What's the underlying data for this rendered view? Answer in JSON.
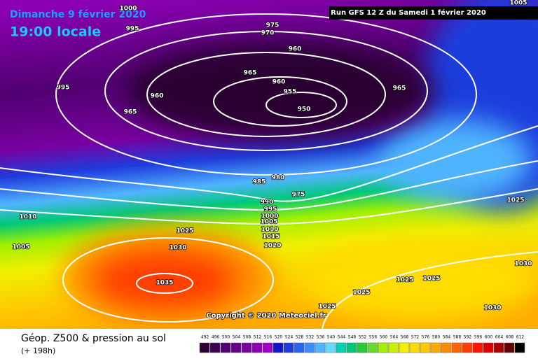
{
  "header": {
    "date": "Dimanche 9 février 2020",
    "time": "19:00 locale",
    "run": "Run GFS 12 Z du Samedi 1 février 2020"
  },
  "copyright": "Copyright © 2020 Meteociel.fr",
  "footer": {
    "title": "Géop. Z500 & pression au sol",
    "lead": "(+ 198h)"
  },
  "isobar_labels": [
    1000,
    995,
    975,
    970,
    960,
    965,
    960,
    955,
    950,
    960,
    965,
    995,
    965,
    985,
    980,
    975,
    990,
    995,
    1000,
    1005,
    1010,
    1015,
    1020,
    1010,
    1005,
    1025,
    1030,
    1035,
    1025,
    1030,
    1025,
    1025,
    1025,
    1025,
    1030,
    1005
  ],
  "scale": [
    {
      "label": 492,
      "color": "#2a0030"
    },
    {
      "label": 496,
      "color": "#3c0050"
    },
    {
      "label": 500,
      "color": "#500070"
    },
    {
      "label": 504,
      "color": "#640088"
    },
    {
      "label": 508,
      "color": "#7800a0"
    },
    {
      "label": 512,
      "color": "#8c00b4"
    },
    {
      "label": 516,
      "color": "#a000c8"
    },
    {
      "label": 520,
      "color": "#1414c8"
    },
    {
      "label": 524,
      "color": "#1e3cdc"
    },
    {
      "label": 528,
      "color": "#2864f0"
    },
    {
      "label": 532,
      "color": "#3c8cff"
    },
    {
      "label": 536,
      "color": "#50b4ff"
    },
    {
      "label": 540,
      "color": "#64dcff"
    },
    {
      "label": 544,
      "color": "#00d2b4"
    },
    {
      "label": 548,
      "color": "#00c878"
    },
    {
      "label": 552,
      "color": "#28c83c"
    },
    {
      "label": 556,
      "color": "#64dc28"
    },
    {
      "label": 560,
      "color": "#a0f000"
    },
    {
      "label": 564,
      "color": "#c8f000"
    },
    {
      "label": 568,
      "color": "#f0f000"
    },
    {
      "label": 572,
      "color": "#ffdc00"
    },
    {
      "label": 576,
      "color": "#ffc800"
    },
    {
      "label": 580,
      "color": "#ffaa00"
    },
    {
      "label": 584,
      "color": "#ff8c00"
    },
    {
      "label": 588,
      "color": "#ff6400"
    },
    {
      "label": 592,
      "color": "#ff3c00"
    },
    {
      "label": 596,
      "color": "#ff1400"
    },
    {
      "label": 600,
      "color": "#dc0000"
    },
    {
      "label": 604,
      "color": "#aa0000"
    },
    {
      "label": 608,
      "color": "#640000"
    },
    {
      "label": 612,
      "color": "#000000"
    }
  ]
}
